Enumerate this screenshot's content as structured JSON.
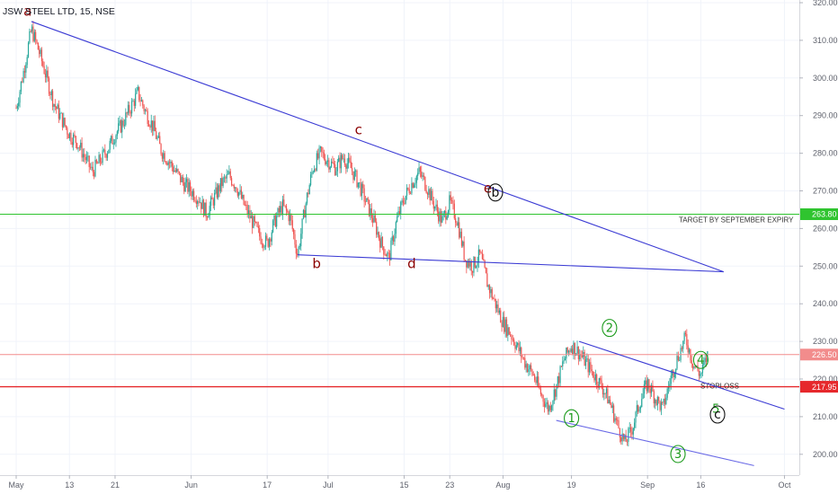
{
  "chart_data": {
    "type": "candlestick",
    "title": "JSW STEEL LTD, 15, NSE",
    "ylim": [
      196,
      322
    ],
    "y_ticks": [
      200,
      210,
      220,
      230,
      240,
      250,
      260,
      270,
      280,
      290,
      300,
      310,
      320
    ],
    "y_tick_labels": [
      "200.00",
      "210.00",
      "220.00",
      "230.00",
      "240.00",
      "250.00",
      "260.00",
      "270.00",
      "280.00",
      "290.00",
      "300.00",
      "310.00",
      "320.00"
    ],
    "x_ticks": [
      {
        "t": 0,
        "label": "May"
      },
      {
        "t": 7,
        "label": "13"
      },
      {
        "t": 13,
        "label": "21"
      },
      {
        "t": 23,
        "label": "Jun"
      },
      {
        "t": 33,
        "label": "17"
      },
      {
        "t": 41,
        "label": "Jul"
      },
      {
        "t": 51,
        "label": "15"
      },
      {
        "t": 57,
        "label": "23"
      },
      {
        "t": 64,
        "label": "Aug"
      },
      {
        "t": 73,
        "label": "19"
      },
      {
        "t": 83,
        "label": "Sep"
      },
      {
        "t": 90,
        "label": "16"
      },
      {
        "t": 101,
        "label": "Oct"
      }
    ],
    "price_path": [
      [
        0,
        292
      ],
      [
        1,
        302
      ],
      [
        2,
        313
      ],
      [
        3,
        307
      ],
      [
        4,
        300
      ],
      [
        5,
        293
      ],
      [
        6,
        289
      ],
      [
        7,
        285
      ],
      [
        8,
        283
      ],
      [
        9,
        279
      ],
      [
        10,
        275
      ],
      [
        11,
        278
      ],
      [
        12,
        281
      ],
      [
        13,
        285
      ],
      [
        14,
        288
      ],
      [
        15,
        292
      ],
      [
        16,
        296
      ],
      [
        17,
        291
      ],
      [
        18,
        287
      ],
      [
        19,
        281
      ],
      [
        20,
        278
      ],
      [
        21,
        275
      ],
      [
        22,
        272
      ],
      [
        23,
        270
      ],
      [
        24,
        268
      ],
      [
        25,
        264
      ],
      [
        26,
        268
      ],
      [
        27,
        272
      ],
      [
        28,
        274
      ],
      [
        29,
        271
      ],
      [
        30,
        266
      ],
      [
        31,
        262
      ],
      [
        32,
        258
      ],
      [
        33,
        256
      ],
      [
        34,
        262
      ],
      [
        35,
        266
      ],
      [
        36,
        263
      ],
      [
        37,
        253
      ],
      [
        38,
        266
      ],
      [
        39,
        276
      ],
      [
        40,
        280
      ],
      [
        41,
        278
      ],
      [
        42,
        276
      ],
      [
        43,
        279
      ],
      [
        44,
        276
      ],
      [
        45,
        272
      ],
      [
        46,
        267
      ],
      [
        47,
        262
      ],
      [
        48,
        256
      ],
      [
        49,
        252
      ],
      [
        50,
        262
      ],
      [
        51,
        268
      ],
      [
        52,
        272
      ],
      [
        53,
        275
      ],
      [
        54,
        271
      ],
      [
        55,
        266
      ],
      [
        56,
        262
      ],
      [
        57,
        267
      ],
      [
        58,
        262
      ],
      [
        59,
        252
      ],
      [
        60,
        250
      ],
      [
        61,
        253
      ],
      [
        62,
        245
      ],
      [
        63,
        240
      ],
      [
        64,
        235
      ],
      [
        65,
        232
      ],
      [
        66,
        228
      ],
      [
        67,
        224
      ],
      [
        68,
        221
      ],
      [
        69,
        216
      ],
      [
        70,
        212
      ],
      [
        71,
        218
      ],
      [
        72,
        225
      ],
      [
        73,
        229
      ],
      [
        74,
        227
      ],
      [
        75,
        224
      ],
      [
        76,
        221
      ],
      [
        77,
        218
      ],
      [
        78,
        214
      ],
      [
        79,
        208
      ],
      [
        80,
        203
      ],
      [
        81,
        207
      ],
      [
        82,
        214
      ],
      [
        83,
        219
      ],
      [
        84,
        215
      ],
      [
        85,
        212
      ],
      [
        86,
        220
      ],
      [
        87,
        226
      ],
      [
        88,
        231
      ],
      [
        89,
        224
      ],
      [
        90,
        221
      ],
      [
        91,
        227
      ]
    ],
    "trendlines": [
      {
        "name": "upper",
        "color": "#3b3bd4",
        "points": [
          [
            2,
            315
          ],
          [
            93,
            248.5
          ]
        ]
      },
      {
        "name": "lower",
        "color": "#3b3bd4",
        "points": [
          [
            37,
            253
          ],
          [
            93,
            248.5
          ]
        ]
      },
      {
        "name": "channel-top",
        "color": "#3b3bd4",
        "points": [
          [
            74,
            230
          ],
          [
            101,
            212
          ]
        ]
      },
      {
        "name": "channel-bottom",
        "color": "#6a6ae6",
        "points": [
          [
            71,
            209
          ],
          [
            97,
            197
          ]
        ]
      }
    ],
    "horizontal_lines": [
      {
        "value": 263.8,
        "color": "#2fc42f",
        "label": "263.80",
        "note": "TARGET BY SEPTEMBER EXPIRY"
      },
      {
        "value": 226.5,
        "color": "#f28c8c",
        "label": "226.50",
        "note": ""
      },
      {
        "value": 217.95,
        "color": "#e6282c",
        "label": "217.95",
        "note": "STOPLOSS"
      }
    ],
    "wave_labels": [
      {
        "text": "a",
        "t": 1.5,
        "v": 316.5,
        "style": "red",
        "circled": false
      },
      {
        "text": "c",
        "t": 45,
        "v": 285,
        "style": "red",
        "circled": false
      },
      {
        "text": "b",
        "t": 39.5,
        "v": 249.5,
        "style": "red",
        "circled": false
      },
      {
        "text": "d",
        "t": 52,
        "v": 249.5,
        "style": "red",
        "circled": false
      },
      {
        "text": "e",
        "t": 62,
        "v": 269.5,
        "style": "red",
        "circled": false
      },
      {
        "text": "b",
        "t": 63,
        "v": 268.5,
        "style": "black",
        "circled": true
      },
      {
        "text": "1",
        "t": 73,
        "v": 208.5,
        "style": "green",
        "circled": true
      },
      {
        "text": "2",
        "t": 78,
        "v": 232.5,
        "style": "green",
        "circled": true
      },
      {
        "text": "3",
        "t": 87,
        "v": 199,
        "style": "green",
        "circled": true
      },
      {
        "text": "4",
        "t": 90,
        "v": 224,
        "style": "green",
        "circled": true
      },
      {
        "text": "5",
        "t": 92,
        "v": 211,
        "style": "green",
        "circled": false
      },
      {
        "text": "c",
        "t": 92.2,
        "v": 209.5,
        "style": "black",
        "circled": true
      }
    ]
  }
}
